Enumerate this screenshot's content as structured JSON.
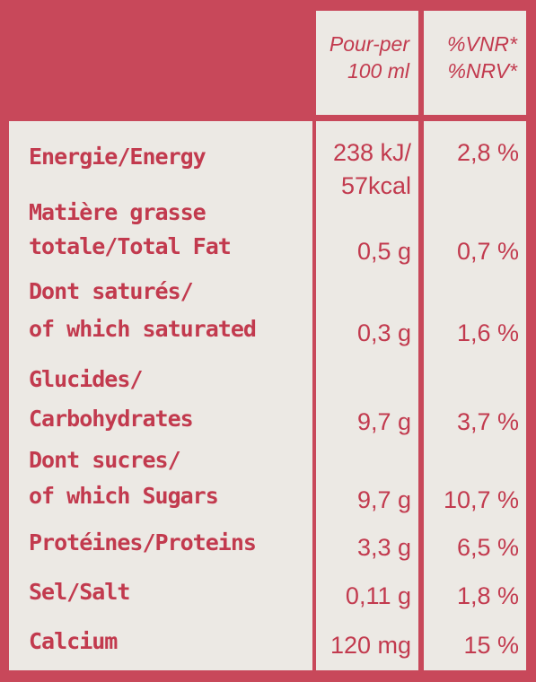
{
  "header": {
    "per_line1": "Pour-per",
    "per_line2": "100 ml",
    "nrv_line1": "%VNR*",
    "nrv_line2": "%NRV*"
  },
  "rows": [
    {
      "name_lines": [
        "Energie/Energy"
      ],
      "value_lines": [
        "238 kJ/",
        "57kcal"
      ],
      "pct": "2,8 %"
    },
    {
      "name_lines": [
        "Matière grasse",
        "totale/Total Fat"
      ],
      "value_lines": [
        "0,5 g"
      ],
      "pct": "0,7 %"
    },
    {
      "name_lines": [
        "Dont saturés/",
        "of which saturated"
      ],
      "value_lines": [
        "0,3 g"
      ],
      "pct": "1,6 %"
    },
    {
      "name_lines": [
        "Glucides/",
        "Carbohydrates"
      ],
      "value_lines": [
        "9,7 g"
      ],
      "pct": "3,7 %"
    },
    {
      "name_lines": [
        "Dont sucres/",
        "of which Sugars"
      ],
      "value_lines": [
        "9,7 g"
      ],
      "pct": "10,7 %"
    },
    {
      "name_lines": [
        "Protéines/Proteins"
      ],
      "value_lines": [
        "3,3 g"
      ],
      "pct": "6,5 %"
    },
    {
      "name_lines": [
        "Sel/Salt"
      ],
      "value_lines": [
        "0,11 g"
      ],
      "pct": "1,8 %"
    },
    {
      "name_lines": [
        "Calcium"
      ],
      "value_lines": [
        "120 mg"
      ],
      "pct": "15 %"
    }
  ]
}
